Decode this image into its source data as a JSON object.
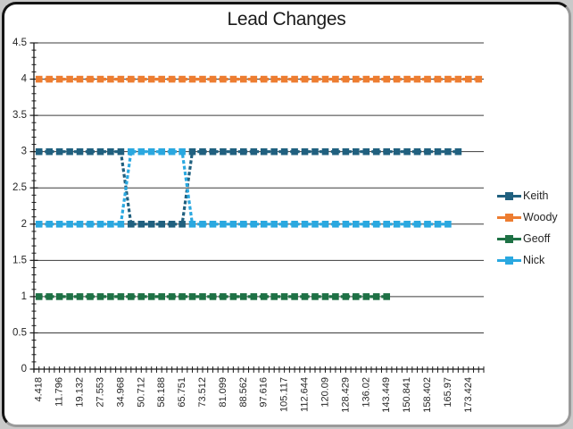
{
  "chart_data": {
    "type": "line",
    "title": "Lead Changes",
    "xlabel": "",
    "ylabel": "",
    "ylim": [
      0,
      4.5
    ],
    "y_major_unit": 0.5,
    "y_minor_unit": 0.1,
    "y_tick_labels": [
      "0",
      "0.5",
      "1",
      "1.5",
      "2",
      "2.5",
      "3",
      "3.5",
      "4",
      "4.5"
    ],
    "grid": "horizontal",
    "legend_position": "right",
    "n_points": 44,
    "label_every_n_points": 2,
    "x_labels": [
      "4.418",
      "11.796",
      "19.132",
      "27.553",
      "34.968",
      "50.712",
      "58.188",
      "65.751",
      "73.512",
      "81.099",
      "88.562",
      "97.616",
      "105.117",
      "112.644",
      "120.09",
      "128.429",
      "136.02",
      "143.449",
      "150.841",
      "158.402",
      "165.97",
      "173.424"
    ],
    "axis_color": "#1a1a1a",
    "grid_color": "#3c3c3c",
    "tick_label_color": "#262626",
    "series": [
      {
        "name": "Keith",
        "color": "#20607F",
        "values": [
          3,
          3,
          3,
          3,
          3,
          3,
          3,
          3,
          3,
          2,
          2,
          2,
          2,
          2,
          2,
          3,
          3,
          3,
          3,
          3,
          3,
          3,
          3,
          3,
          3,
          3,
          3,
          3,
          3,
          3,
          3,
          3,
          3,
          3,
          3,
          3,
          3,
          3,
          3,
          3,
          3,
          3
        ]
      },
      {
        "name": "Woody",
        "color": "#ED7D31",
        "values": [
          4,
          4,
          4,
          4,
          4,
          4,
          4,
          4,
          4,
          4,
          4,
          4,
          4,
          4,
          4,
          4,
          4,
          4,
          4,
          4,
          4,
          4,
          4,
          4,
          4,
          4,
          4,
          4,
          4,
          4,
          4,
          4,
          4,
          4,
          4,
          4,
          4,
          4,
          4,
          4,
          4,
          4,
          4,
          4
        ]
      },
      {
        "name": "Geoff",
        "color": "#1E7145",
        "values": [
          1,
          1,
          1,
          1,
          1,
          1,
          1,
          1,
          1,
          1,
          1,
          1,
          1,
          1,
          1,
          1,
          1,
          1,
          1,
          1,
          1,
          1,
          1,
          1,
          1,
          1,
          1,
          1,
          1,
          1,
          1,
          1,
          1,
          1,
          1
        ]
      },
      {
        "name": "Nick",
        "color": "#2AA8E0",
        "values": [
          2,
          2,
          2,
          2,
          2,
          2,
          2,
          2,
          2,
          3,
          3,
          3,
          3,
          3,
          3,
          2,
          2,
          2,
          2,
          2,
          2,
          2,
          2,
          2,
          2,
          2,
          2,
          2,
          2,
          2,
          2,
          2,
          2,
          2,
          2,
          2,
          2,
          2,
          2,
          2,
          2
        ]
      }
    ]
  }
}
